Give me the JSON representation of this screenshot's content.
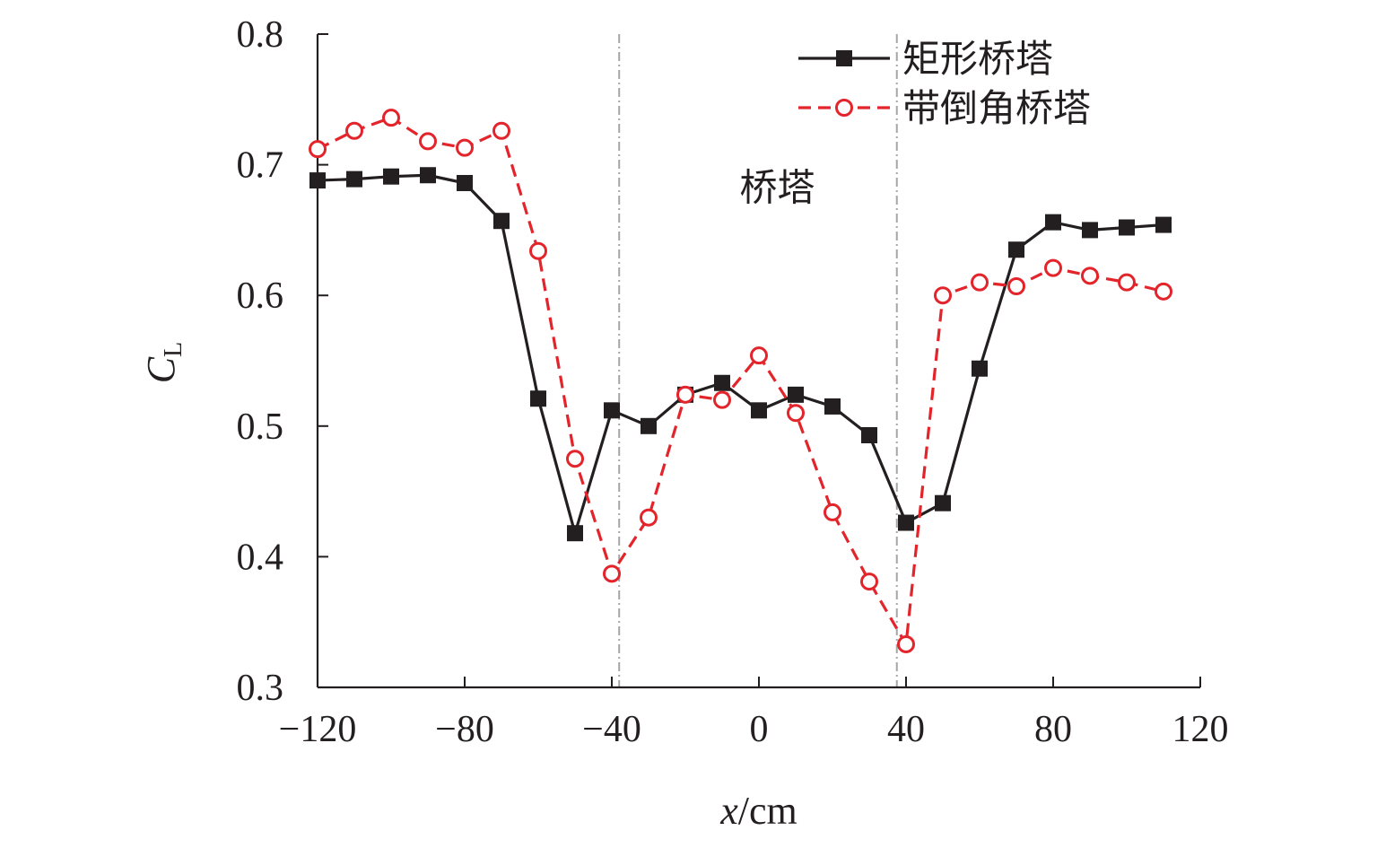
{
  "chart_data": {
    "type": "line",
    "xlabel_var": "x",
    "xlabel_unit": "/cm",
    "ylabel_var": "C",
    "ylabel_sub": "L",
    "xlim": [
      -120,
      120
    ],
    "ylim": [
      0.3,
      0.8
    ],
    "xticks": [
      -120,
      -80,
      -40,
      0,
      40,
      80,
      120
    ],
    "yticks": [
      0.3,
      0.4,
      0.5,
      0.6,
      0.7,
      0.8
    ],
    "xtick_labels": [
      "−120",
      "−80",
      "−40",
      "0",
      "40",
      "80",
      "120"
    ],
    "ytick_labels": [
      "0.3",
      "0.4",
      "0.5",
      "0.6",
      "0.7",
      "0.8"
    ],
    "reference_lines_x": [
      -38,
      37.5
    ],
    "annotation": {
      "text": "桥塔",
      "x": 5,
      "y": 0.683
    },
    "legend_position": "top-right",
    "grid": false,
    "series": [
      {
        "name": "矩形桥塔",
        "color": "#231f20",
        "line_style": "solid",
        "marker": "filled-square",
        "x": [
          -120,
          -110,
          -100,
          -90,
          -80,
          -70,
          -60,
          -50,
          -40,
          -30,
          -20,
          -10,
          0,
          10,
          20,
          30,
          40,
          50,
          60,
          70,
          80,
          90,
          100,
          110
        ],
        "y": [
          0.688,
          0.689,
          0.691,
          0.692,
          0.686,
          0.657,
          0.521,
          0.418,
          0.512,
          0.5,
          0.524,
          0.533,
          0.512,
          0.524,
          0.515,
          0.493,
          0.426,
          0.441,
          0.544,
          0.635,
          0.656,
          0.65,
          0.652,
          0.654
        ]
      },
      {
        "name": "带倒角桥塔",
        "color": "#e3242b",
        "line_style": "dashed",
        "marker": "open-circle",
        "x": [
          -120,
          -110,
          -100,
          -90,
          -80,
          -70,
          -60,
          -50,
          -40,
          -30,
          -20,
          -10,
          0,
          10,
          20,
          30,
          40,
          50,
          60,
          70,
          80,
          90,
          100,
          110
        ],
        "y": [
          0.712,
          0.726,
          0.736,
          0.718,
          0.713,
          0.726,
          0.634,
          0.475,
          0.387,
          0.43,
          0.524,
          0.52,
          0.554,
          0.51,
          0.434,
          0.381,
          0.333,
          0.6,
          0.61,
          0.607,
          0.621,
          0.615,
          0.61,
          0.603
        ]
      }
    ]
  }
}
